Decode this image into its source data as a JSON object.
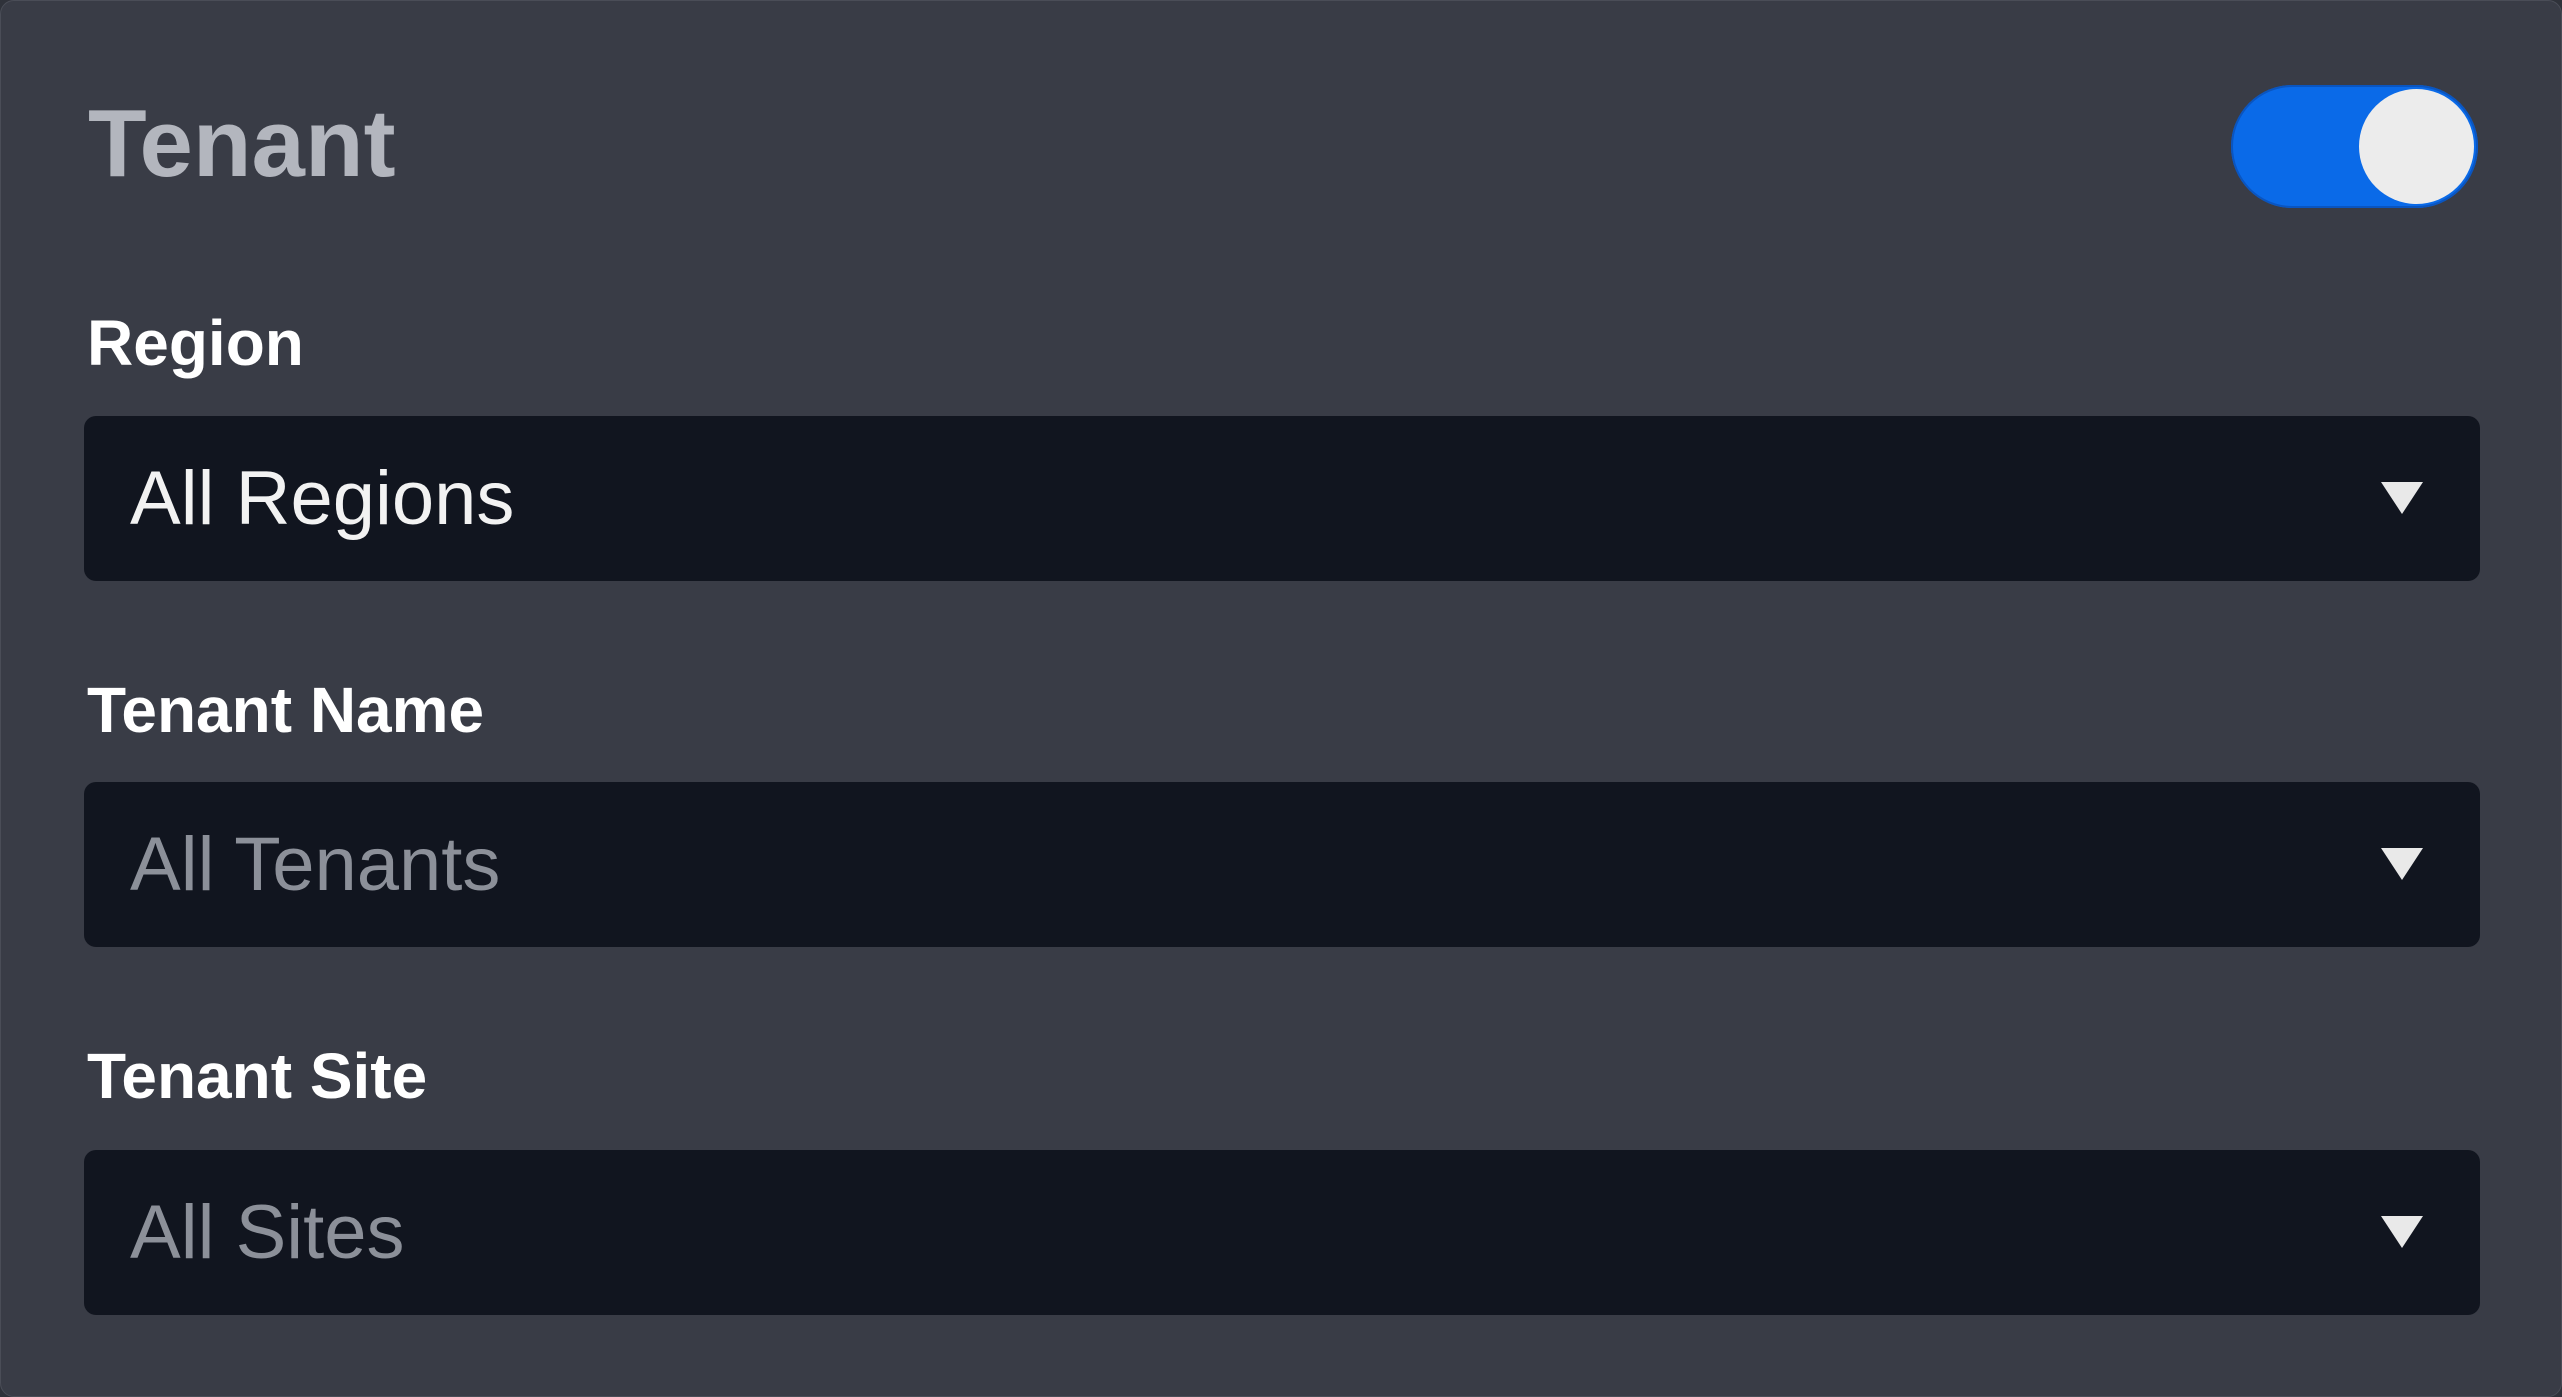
{
  "panel": {
    "title": "Tenant",
    "toggle": {
      "state": "on",
      "accent_color": "#0a6ae8"
    }
  },
  "fields": [
    {
      "label": "Region",
      "value": "All Regions",
      "is_placeholder": false
    },
    {
      "label": "Tenant Name",
      "value": "All Tenants",
      "is_placeholder": true
    },
    {
      "label": "Tenant Site",
      "value": "All Sites",
      "is_placeholder": true
    }
  ]
}
